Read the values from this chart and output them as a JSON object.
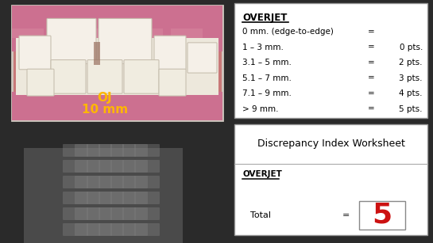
{
  "background_color": "#3a3a3a",
  "top_right_box": {
    "bg": "#ffffff",
    "heading": "OVERJET",
    "rows": [
      {
        "label": "0 mm. (edge-to-edge)",
        "eq": "=",
        "pts": ""
      },
      {
        "label": "1 – 3 mm.",
        "eq": "=",
        "pts": "0 pts."
      },
      {
        "label": "3.1 – 5 mm.",
        "eq": "=",
        "pts": "2 pts."
      },
      {
        "label": "5.1 – 7 mm.",
        "eq": "=",
        "pts": "3 pts."
      },
      {
        "label": "7.1 – 9 mm.",
        "eq": "=",
        "pts": "4 pts."
      },
      {
        "label": "> 9 mm.",
        "eq": "=",
        "pts": "5 pts."
      }
    ]
  },
  "bottom_right_box": {
    "bg": "#ffffff",
    "heading": "Discrepancy Index Worksheet",
    "sub_heading": "OVERJET",
    "total_label": "Total",
    "eq": "=",
    "value": "5",
    "value_color": "#cc1111"
  },
  "photo_label1": "OJ",
  "photo_label2": "10 mm",
  "photo_label_color": "#FFB700",
  "photo_border_color": "#d0c8c0",
  "xray_color": "#888888"
}
